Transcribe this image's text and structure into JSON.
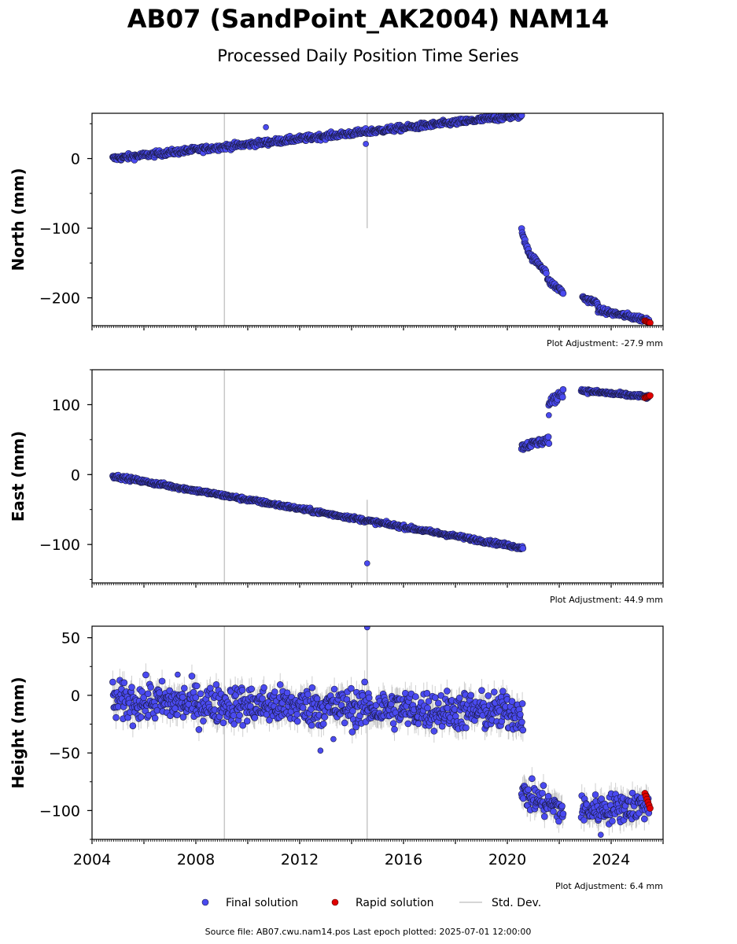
{
  "title": "AB07 (SandPoint_AK2004) NAM14",
  "subtitle": "Processed Daily Position Time Series",
  "footer": "Source file: AB07.cwu.nam14.pos  Last epoch plotted: 2025-07-01 12:00:00",
  "legend": {
    "final": "Final solution",
    "rapid": "Rapid solution",
    "stddev": "Std. Dev."
  },
  "colors": {
    "final": "#4a4af0",
    "final_edge": "#1a1a40",
    "rapid": "#e00000",
    "stddev": "#c8c8c8",
    "vline": "#c8c8c8"
  },
  "chart_data": [
    {
      "type": "scatter",
      "ylabel": "North (mm)",
      "adjustment": "Plot Adjustment: -27.9 mm",
      "xlim": [
        2004.0,
        2026.0
      ],
      "ylim": [
        -240,
        65
      ],
      "yticks": [
        0,
        -100,
        -200
      ],
      "ytick_labels": [
        "0",
        "−100",
        "−200"
      ],
      "vlines": [
        {
          "x": 2009.1,
          "y": [
            -240,
            65
          ]
        },
        {
          "x": 2014.6,
          "y": [
            -100,
            65
          ]
        }
      ],
      "segments": [
        {
          "x": [
            2004.8,
            2020.55
          ],
          "y": [
            0,
            62
          ],
          "noise": 3
        },
        {
          "x": [
            2020.55,
            2020.9
          ],
          "y": [
            -105,
            -140
          ],
          "noise": 4
        },
        {
          "x": [
            2020.9,
            2021.5
          ],
          "y": [
            -140,
            -162
          ],
          "noise": 3
        },
        {
          "x": [
            2021.55,
            2022.15
          ],
          "y": [
            -175,
            -192
          ],
          "noise": 3
        },
        {
          "x": [
            2022.9,
            2023.5
          ],
          "y": [
            -200,
            -208
          ],
          "noise": 3
        },
        {
          "x": [
            2023.5,
            2025.45
          ],
          "y": [
            -218,
            -232
          ],
          "noise": 3
        }
      ],
      "outliers": [
        [
          2010.7,
          45
        ],
        [
          2014.55,
          21
        ]
      ],
      "rapid": {
        "x": [
          2025.3,
          2025.5
        ],
        "y": [
          -233,
          -236
        ]
      }
    },
    {
      "type": "scatter",
      "ylabel": "East (mm)",
      "adjustment": "Plot Adjustment: 44.9 mm",
      "xlim": [
        2004.0,
        2026.0
      ],
      "ylim": [
        -155,
        150
      ],
      "yticks": [
        100,
        0,
        -100
      ],
      "ytick_labels": [
        "100",
        "0",
        "−100"
      ],
      "vlines": [
        {
          "x": 2009.1,
          "y": [
            -155,
            150
          ]
        },
        {
          "x": 2014.6,
          "y": [
            -155,
            -36
          ]
        }
      ],
      "segments": [
        {
          "x": [
            2004.8,
            2020.6
          ],
          "y": [
            -2,
            -105
          ],
          "noise": 2
        },
        {
          "x": [
            2020.55,
            2021.6
          ],
          "y": [
            40,
            50
          ],
          "noise": 4
        },
        {
          "x": [
            2021.6,
            2022.15
          ],
          "y": [
            100,
            120
          ],
          "noise": 5
        },
        {
          "x": [
            2022.85,
            2025.45
          ],
          "y": [
            120,
            111
          ],
          "noise": 2
        }
      ],
      "outliers": [
        [
          2014.6,
          -127
        ],
        [
          2021.6,
          85
        ]
      ],
      "rapid": {
        "x": [
          2025.3,
          2025.5
        ],
        "y": [
          110,
          113
        ]
      }
    },
    {
      "type": "scatter",
      "ylabel": "Height (mm)",
      "adjustment": "Plot Adjustment: 6.4 mm",
      "xlim": [
        2004.0,
        2026.0
      ],
      "ylim": [
        -125,
        60
      ],
      "yticks": [
        50,
        0,
        -50,
        -100
      ],
      "ytick_labels": [
        "50",
        "0",
        "−50",
        "−100"
      ],
      "xticks": [
        2004,
        2008,
        2012,
        2016,
        2020,
        2024
      ],
      "xtick_labels": [
        "2004",
        "2008",
        "2012",
        "2016",
        "2020",
        "2024"
      ],
      "vlines": [
        {
          "x": 2009.1,
          "y": [
            -125,
            60
          ]
        },
        {
          "x": 2014.6,
          "y": [
            -125,
            60
          ]
        }
      ],
      "segments": [
        {
          "x": [
            2004.8,
            2020.6
          ],
          "y": [
            -5,
            -15
          ],
          "noise": 12
        },
        {
          "x": [
            2020.55,
            2022.15
          ],
          "y": [
            -85,
            -100
          ],
          "noise": 9
        },
        {
          "x": [
            2022.85,
            2025.45
          ],
          "y": [
            -100,
            -95
          ],
          "noise": 9
        }
      ],
      "outliers": [
        [
          2014.6,
          59
        ],
        [
          2012.8,
          -48
        ],
        [
          2013.3,
          -38
        ],
        [
          2007.3,
          18
        ],
        [
          2023.6,
          -121
        ]
      ],
      "rapid": {
        "x": [
          2025.3,
          2025.5
        ],
        "y": [
          -85,
          -98
        ]
      }
    }
  ]
}
